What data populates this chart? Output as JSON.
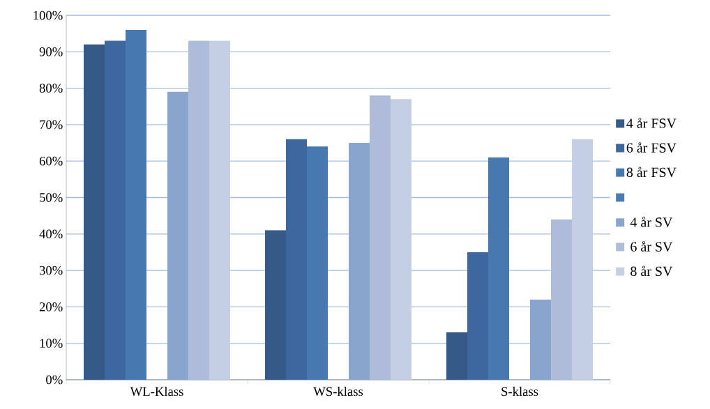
{
  "chart_data": {
    "type": "bar",
    "categories": [
      "WL-Klass",
      "WS-klass",
      "S-klass"
    ],
    "series": [
      {
        "name": "4 år FSV",
        "color": "#355a87",
        "values": [
          92,
          41,
          13
        ]
      },
      {
        "name": "6 år FSV",
        "color": "#3e67a0",
        "values": [
          93,
          66,
          35
        ]
      },
      {
        "name": "8 år FSV",
        "color": "#4878b0",
        "values": [
          96,
          64,
          61
        ]
      },
      {
        "color": "#4a7bb7",
        "values": [
          null,
          null,
          null
        ]
      },
      {
        "name": "4 år SV",
        "color": "#8aa5cd",
        "values": [
          79,
          65,
          22
        ]
      },
      {
        "name": "6 år SV",
        "color": "#aebbd9",
        "values": [
          93,
          78,
          44
        ]
      },
      {
        "name": "8 år SV",
        "color": "#c5cfe3",
        "values": [
          93,
          77,
          66
        ]
      }
    ],
    "ylim": [
      0,
      100
    ],
    "yticks": [
      {
        "value": 0,
        "label": "0%"
      },
      {
        "value": 10,
        "label": "10%"
      },
      {
        "value": 20,
        "label": "20%"
      },
      {
        "value": 30,
        "label": "30%"
      },
      {
        "value": 40,
        "label": "40%"
      },
      {
        "value": 50,
        "label": "50%"
      },
      {
        "value": 60,
        "label": "60%"
      },
      {
        "value": 70,
        "label": "70%"
      },
      {
        "value": 80,
        "label": "80%"
      },
      {
        "value": 90,
        "label": "90%"
      },
      {
        "value": 100,
        "label": "100%"
      }
    ],
    "grid": "y",
    "legend": "right"
  }
}
